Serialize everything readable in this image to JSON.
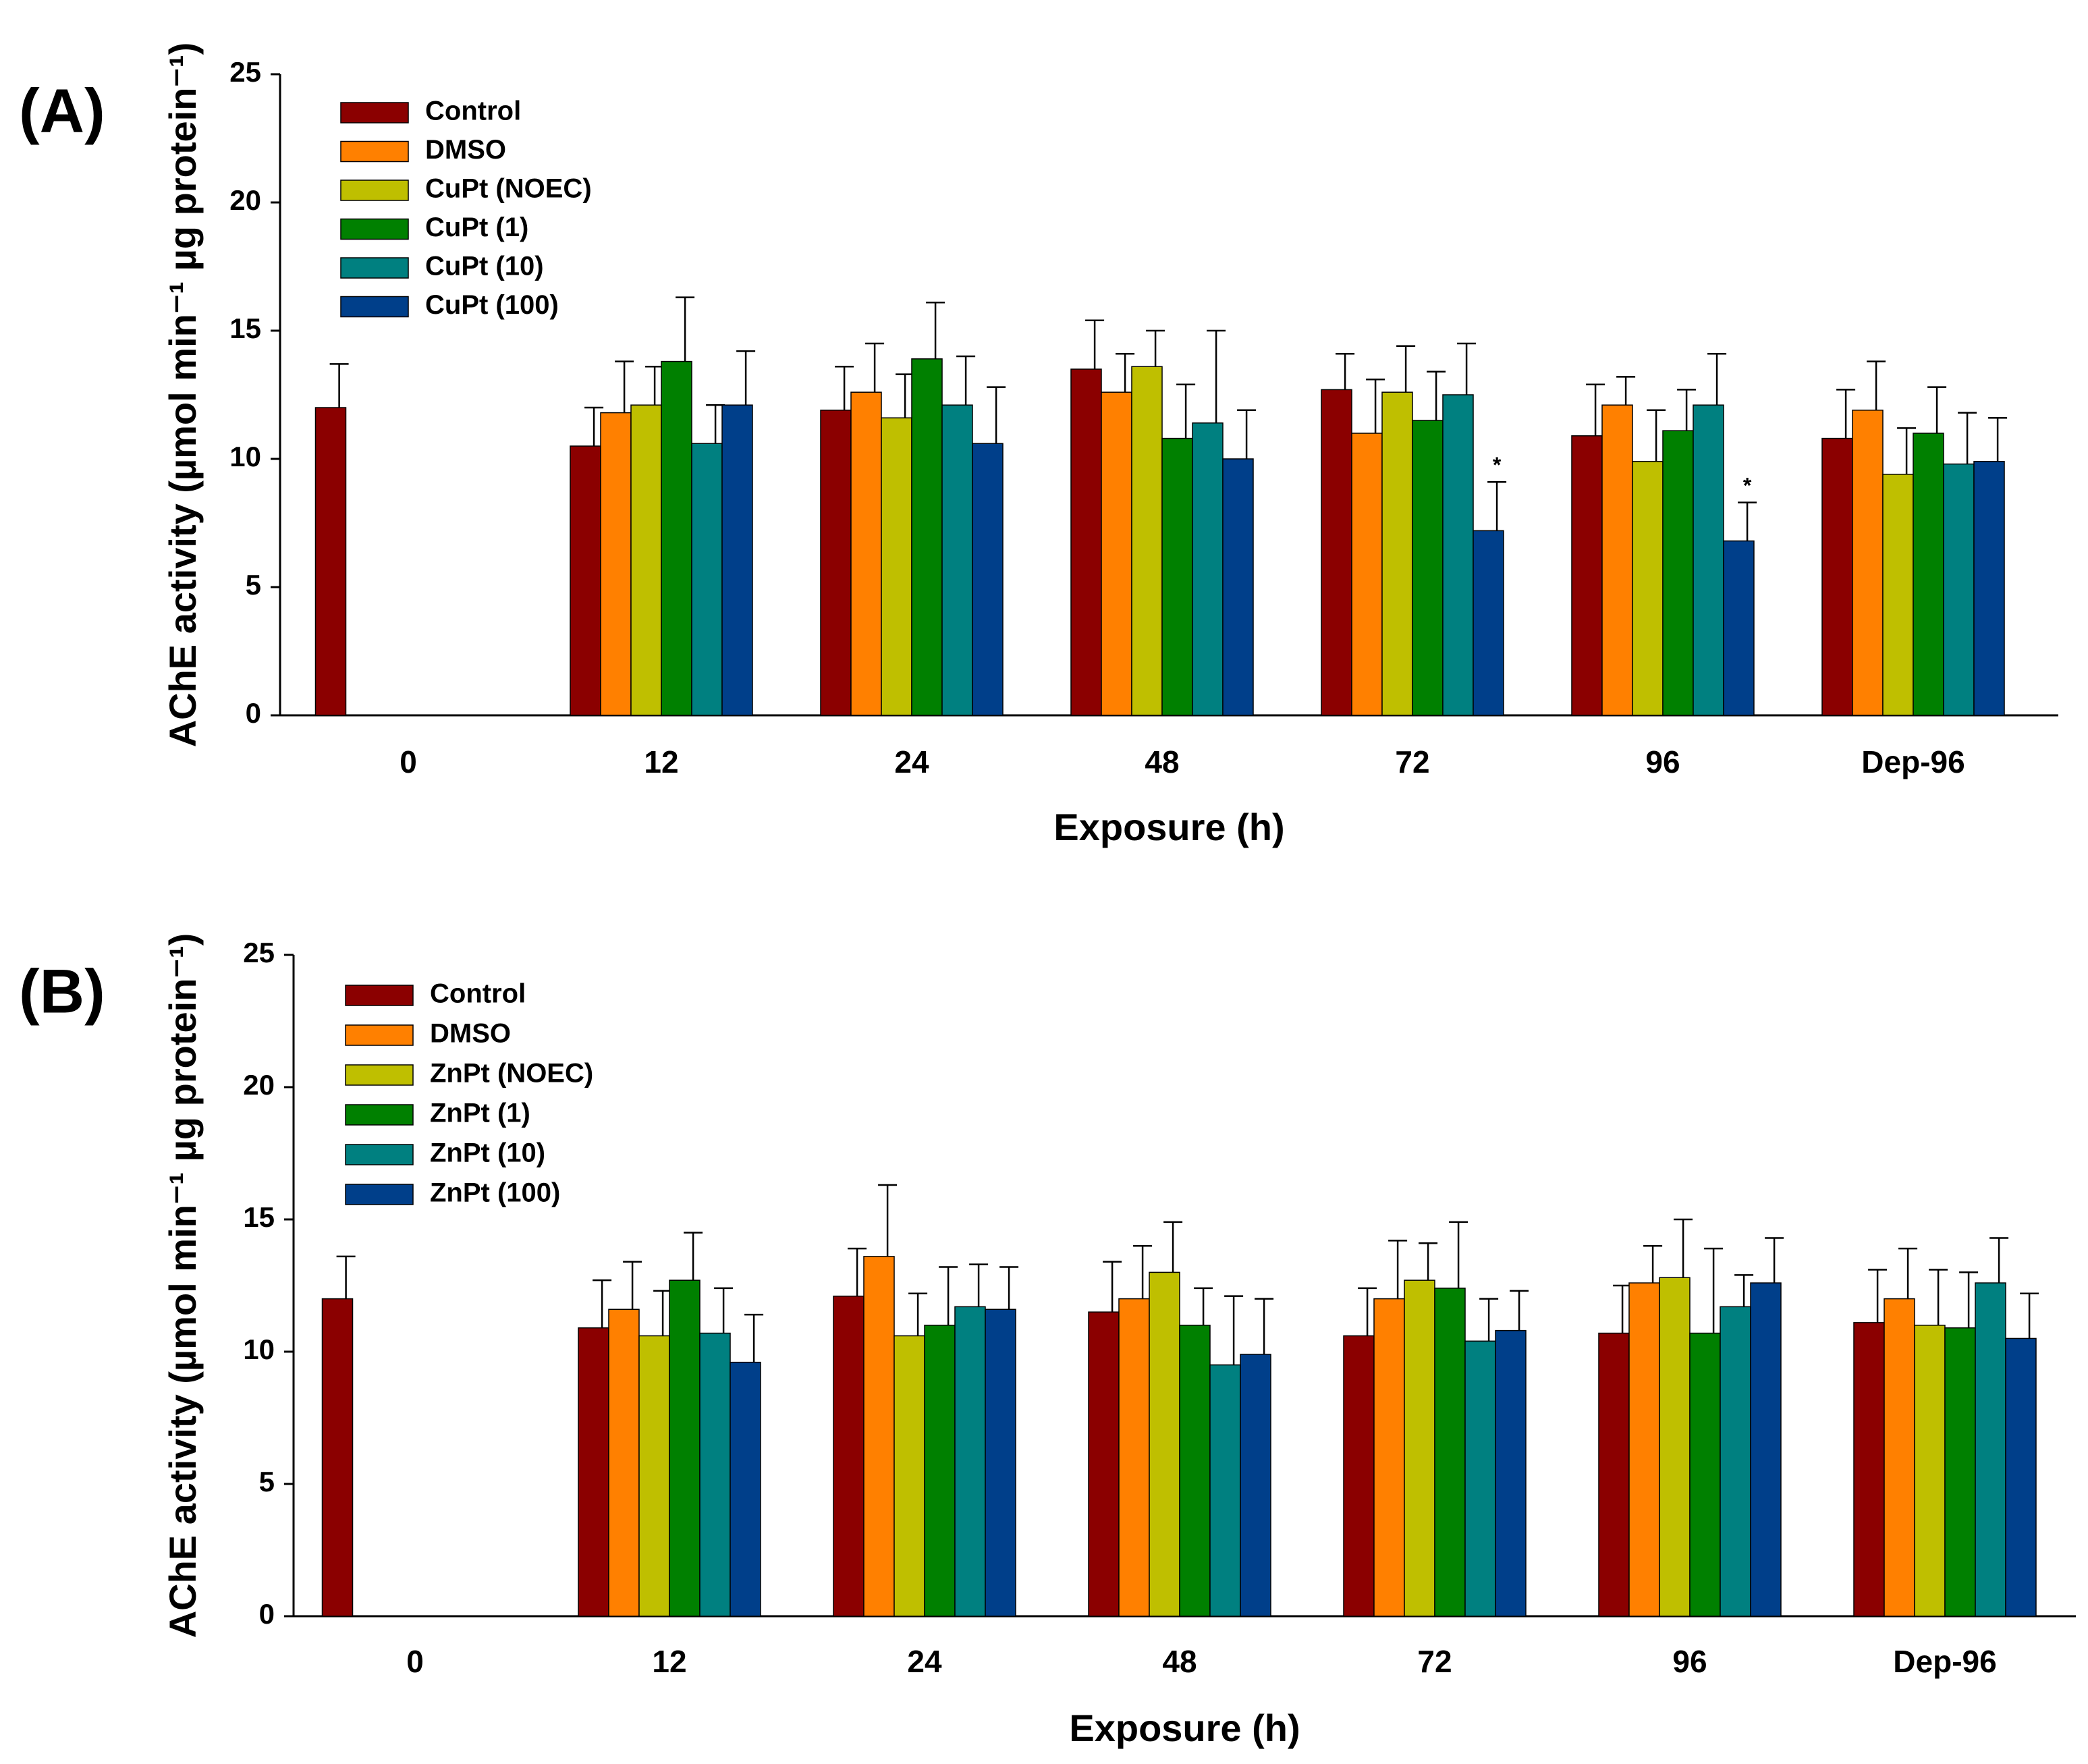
{
  "chart_data": [
    {
      "type": "bar",
      "panel_label": "(A)",
      "xlabel": "Exposure (h)",
      "ylabel": "AChE activity (µmol min⁻¹ µg protein⁻¹)",
      "ylim": [
        0,
        25
      ],
      "yticks": [
        0,
        5,
        10,
        15,
        20,
        25
      ],
      "categories": [
        "0",
        "12",
        "24",
        "48",
        "72",
        "96",
        "Dep-96"
      ],
      "legend_position": "top-left",
      "series": [
        {
          "name": "Control",
          "color": "#8B0000",
          "values": [
            12.0,
            10.5,
            11.9,
            13.5,
            12.7,
            10.9,
            10.8
          ],
          "errors": [
            1.7,
            1.5,
            1.7,
            1.9,
            1.4,
            2.0,
            1.9
          ]
        },
        {
          "name": "DMSO",
          "color": "#FF8000",
          "values": [
            null,
            11.8,
            12.6,
            12.6,
            11.0,
            12.1,
            11.9
          ],
          "errors": [
            null,
            2.0,
            1.9,
            1.5,
            2.1,
            1.1,
            1.9
          ]
        },
        {
          "name": "CuPt (NOEC)",
          "color": "#BFBF00",
          "values": [
            null,
            12.1,
            11.6,
            13.6,
            12.6,
            9.9,
            9.4
          ],
          "errors": [
            null,
            1.5,
            1.7,
            1.4,
            1.8,
            2.0,
            1.8
          ]
        },
        {
          "name": "CuPt (1)",
          "color": "#008000",
          "values": [
            null,
            13.8,
            13.9,
            10.8,
            11.5,
            11.1,
            11.0
          ],
          "errors": [
            null,
            2.5,
            2.2,
            2.1,
            1.9,
            1.6,
            1.8
          ]
        },
        {
          "name": "CuPt (10)",
          "color": "#008080",
          "values": [
            null,
            10.6,
            12.1,
            11.4,
            12.5,
            12.1,
            9.8
          ],
          "errors": [
            null,
            1.5,
            1.9,
            3.6,
            2.0,
            2.0,
            2.0
          ]
        },
        {
          "name": "CuPt (100)",
          "color": "#003F8A",
          "values": [
            null,
            12.1,
            10.6,
            10.0,
            7.2,
            6.8,
            9.9
          ],
          "errors": [
            null,
            2.1,
            2.2,
            1.9,
            1.9,
            1.5,
            1.7
          ]
        }
      ],
      "annotations": [
        {
          "text": "*",
          "category": "72",
          "series": "CuPt (100)"
        },
        {
          "text": "*",
          "category": "96",
          "series": "CuPt (100)"
        }
      ]
    },
    {
      "type": "bar",
      "panel_label": "(B)",
      "xlabel": "Exposure (h)",
      "ylabel": "AChE activity (µmol min⁻¹ µg protein⁻¹)",
      "ylim": [
        0,
        25
      ],
      "yticks": [
        0,
        5,
        10,
        15,
        20,
        25
      ],
      "categories": [
        "0",
        "12",
        "24",
        "48",
        "72",
        "96",
        "Dep-96"
      ],
      "legend_position": "top-left",
      "series": [
        {
          "name": "Control",
          "color": "#8B0000",
          "values": [
            12.0,
            10.9,
            12.1,
            11.5,
            10.6,
            10.7,
            11.1
          ],
          "errors": [
            1.6,
            1.8,
            1.8,
            1.9,
            1.8,
            1.8,
            2.0
          ]
        },
        {
          "name": "DMSO",
          "color": "#FF8000",
          "values": [
            null,
            11.6,
            13.6,
            12.0,
            12.0,
            12.6,
            12.0
          ],
          "errors": [
            null,
            1.8,
            2.7,
            2.0,
            2.2,
            1.4,
            1.9
          ]
        },
        {
          "name": "ZnPt (NOEC)",
          "color": "#BFBF00",
          "values": [
            null,
            10.6,
            10.6,
            13.0,
            12.7,
            12.8,
            11.0
          ],
          "errors": [
            null,
            1.7,
            1.6,
            1.9,
            1.4,
            2.2,
            2.1
          ]
        },
        {
          "name": "ZnPt (1)",
          "color": "#008000",
          "values": [
            null,
            12.7,
            11.0,
            11.0,
            12.4,
            10.7,
            10.9
          ],
          "errors": [
            null,
            1.8,
            2.2,
            1.4,
            2.5,
            3.2,
            2.1
          ]
        },
        {
          "name": "ZnPt (10)",
          "color": "#008080",
          "values": [
            null,
            10.7,
            11.7,
            9.5,
            10.4,
            11.7,
            12.6
          ],
          "errors": [
            null,
            1.7,
            1.6,
            2.6,
            1.6,
            1.2,
            1.7
          ]
        },
        {
          "name": "ZnPt (100)",
          "color": "#003F8A",
          "values": [
            null,
            9.6,
            11.6,
            9.9,
            10.8,
            12.6,
            10.5
          ],
          "errors": [
            null,
            1.8,
            1.6,
            2.1,
            1.5,
            1.7,
            1.7
          ]
        }
      ],
      "annotations": []
    }
  ]
}
